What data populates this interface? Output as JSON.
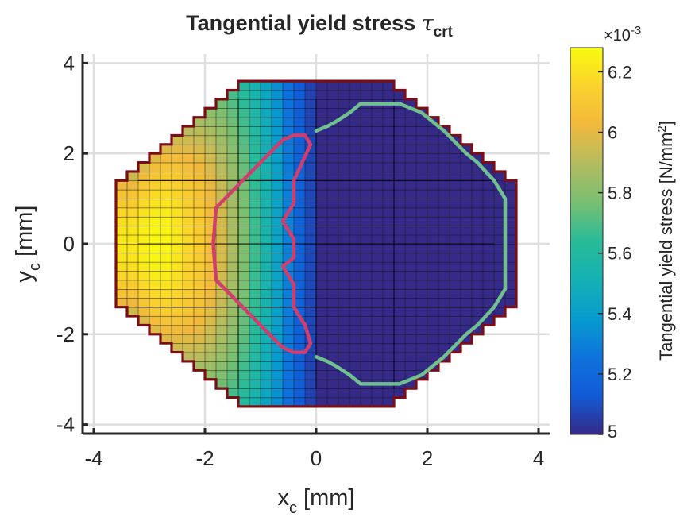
{
  "chart_data": {
    "type": "heatmap",
    "title_main": "Tangential yield stress ",
    "title_symbol": "τ",
    "title_subscript": "crt",
    "xlabel_main": "x",
    "xlabel_sub": "c",
    "xlabel_unit": " [mm]",
    "ylabel_main": "y",
    "ylabel_sub": "c",
    "ylabel_unit": " [mm]",
    "xlim": [
      -4.2,
      4.2
    ],
    "ylim": [
      -4.2,
      4.2
    ],
    "xticks": [
      -4,
      -2,
      0,
      2,
      4
    ],
    "yticks": [
      -4,
      -2,
      0,
      2,
      4
    ],
    "xtick_labels": [
      "-4",
      "-2",
      "0",
      "2",
      "4"
    ],
    "ytick_labels": [
      "-4",
      "-2",
      "0",
      "2",
      "4"
    ],
    "grid": true,
    "cell_size": 0.2,
    "colorbar": {
      "label_main": "Tangential yield stress [N/mm",
      "label_sup": "2",
      "label_end": "]",
      "exponent_prefix": "×10",
      "exponent": "-3",
      "clim": [
        5.0,
        6.28
      ],
      "ticks": [
        5.0,
        5.2,
        5.4,
        5.6,
        5.8,
        6.0,
        6.2
      ],
      "tick_labels": [
        "5",
        "5.2",
        "5.4",
        "5.6",
        "5.8",
        "6",
        "6.2"
      ],
      "colormap": "parula"
    },
    "domain_outline": {
      "color": "#7a0e17",
      "shape": "octagon",
      "x_extent": 3.6,
      "y_extent": 3.6,
      "corner_cut": 4.9
    },
    "stress_profile_by_x": {
      "x": [
        -3.4,
        -3.2,
        -3.0,
        -2.8,
        -2.6,
        -2.4,
        -2.2,
        -2.0,
        -1.8,
        -1.6,
        -1.4,
        -1.2,
        -1.0,
        -0.8,
        -0.6,
        -0.4,
        -0.2
      ],
      "values": [
        6.22,
        6.25,
        6.27,
        6.26,
        6.22,
        6.17,
        6.12,
        6.05,
        5.97,
        5.88,
        5.78,
        5.67,
        5.55,
        5.43,
        5.3,
        5.18,
        5.08
      ],
      "y_decay": 0.22,
      "baseline": 5.0
    },
    "boundaries": [
      {
        "color": "#cf3e6e",
        "points": [
          [
            -0.4,
            2.4
          ],
          [
            -0.2,
            2.4
          ],
          [
            -0.1,
            2.2
          ],
          [
            -0.25,
            1.8
          ],
          [
            -0.4,
            1.4
          ],
          [
            -0.4,
            0.9
          ],
          [
            -0.6,
            0.5
          ],
          [
            -0.4,
            0.1
          ],
          [
            -0.4,
            -0.3
          ],
          [
            -0.6,
            -0.5
          ],
          [
            -0.4,
            -0.9
          ],
          [
            -0.4,
            -1.4
          ],
          [
            -0.2,
            -1.8
          ],
          [
            -0.1,
            -2.2
          ],
          [
            -0.2,
            -2.4
          ],
          [
            -0.4,
            -2.4
          ],
          [
            -0.6,
            -2.3
          ],
          [
            -1.0,
            -1.8
          ],
          [
            -1.4,
            -1.3
          ],
          [
            -1.8,
            -0.8
          ],
          [
            -1.85,
            0.0
          ],
          [
            -1.8,
            0.8
          ],
          [
            -1.4,
            1.3
          ],
          [
            -1.0,
            1.8
          ],
          [
            -0.6,
            2.3
          ],
          [
            -0.4,
            2.4
          ]
        ]
      },
      {
        "color": "#6fbf8f",
        "points": [
          [
            0.0,
            2.5
          ],
          [
            0.2,
            2.6
          ],
          [
            0.35,
            2.7
          ],
          [
            0.6,
            2.9
          ],
          [
            0.8,
            3.1
          ],
          [
            1.5,
            3.1
          ],
          [
            1.9,
            2.9
          ],
          [
            2.3,
            2.5
          ],
          [
            2.7,
            2.0
          ],
          [
            2.9,
            1.8
          ],
          [
            3.2,
            1.4
          ],
          [
            3.4,
            1.0
          ],
          [
            3.4,
            -1.0
          ],
          [
            3.2,
            -1.4
          ],
          [
            2.9,
            -1.8
          ],
          [
            2.7,
            -2.0
          ],
          [
            2.3,
            -2.5
          ],
          [
            1.9,
            -2.9
          ],
          [
            1.5,
            -3.1
          ],
          [
            0.8,
            -3.1
          ],
          [
            0.6,
            -2.9
          ],
          [
            0.35,
            -2.7
          ],
          [
            0.2,
            -2.6
          ],
          [
            0.0,
            -2.5
          ]
        ]
      }
    ]
  }
}
